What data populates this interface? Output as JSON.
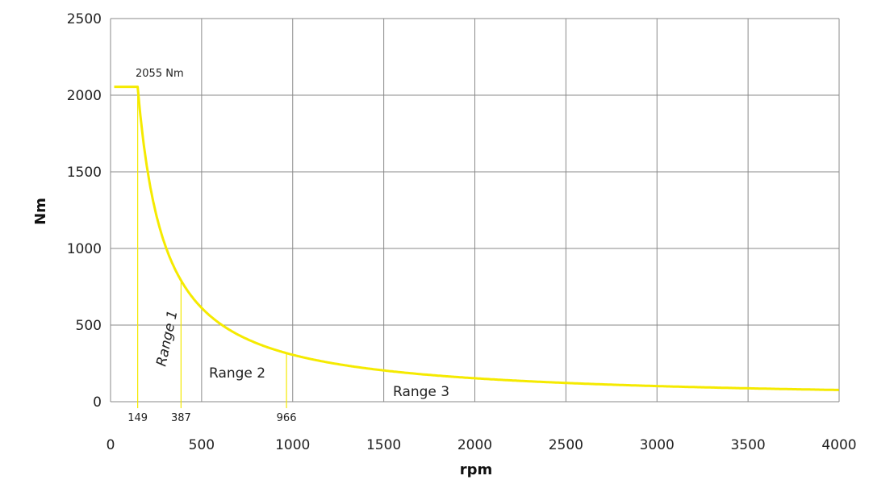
{
  "chart_data": {
    "type": "line",
    "title": "",
    "xlabel": "rpm",
    "ylabel": "Nm",
    "xlim": [
      0,
      4000
    ],
    "ylim": [
      0,
      2500
    ],
    "x_ticks": [
      "0",
      "500",
      "1000",
      "1500",
      "2000",
      "2500",
      "3000",
      "3500",
      "4000"
    ],
    "y_ticks": [
      "0",
      "500",
      "1000",
      "1500",
      "2000",
      "2500"
    ],
    "grid": true,
    "line_color": "#f5ea00",
    "grid_color": "#8a8a8a",
    "series": [
      {
        "x": [
          20,
          149,
          200,
          250,
          300,
          387,
          500,
          600,
          700,
          800,
          966,
          1200,
          1500,
          2000,
          2500,
          3000,
          3500,
          4000
        ],
        "y": [
          2055,
          2055,
          1531,
          1225,
          1021,
          791,
          612,
          510,
          437,
          383,
          317,
          255,
          204,
          153,
          122,
          102,
          87,
          77
        ]
      }
    ],
    "markers": [
      {
        "x": 149,
        "y": 2055,
        "label": "149"
      },
      {
        "x": 387,
        "y": 791,
        "label": "387"
      },
      {
        "x": 966,
        "y": 317,
        "label": "966"
      }
    ],
    "annotations": {
      "peak": "2055 Nm",
      "range1": "Range 1",
      "range2": "Range 2",
      "range3": "Range 3"
    }
  }
}
